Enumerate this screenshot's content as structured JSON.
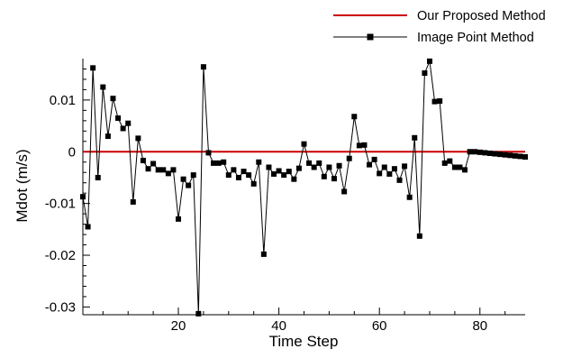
{
  "chart_data": {
    "type": "line",
    "xlabel": "Time Step",
    "ylabel": "Mdot (m/s)",
    "xlim": [
      1,
      89
    ],
    "ylim": [
      -0.0315,
      0.018
    ],
    "x_ticks": [
      20,
      40,
      60,
      80
    ],
    "x_tick_labels": [
      "20",
      "40",
      "60",
      "80"
    ],
    "y_ticks": [
      0.01,
      0,
      -0.01,
      -0.02,
      -0.03
    ],
    "y_tick_labels": [
      "0.01",
      "0",
      "-0.01",
      "-0.02",
      "-0.03"
    ],
    "grid": false,
    "legend_position": "top-right",
    "series": [
      {
        "name": "Our Proposed Method",
        "color": "#cc0000",
        "marker": "none",
        "x": [
          1,
          89
        ],
        "y": [
          0,
          0
        ]
      },
      {
        "name": "Image Point Method",
        "color": "#000000",
        "marker": "square",
        "x": [
          1,
          2,
          3,
          4,
          5,
          6,
          7,
          8,
          9,
          10,
          11,
          12,
          13,
          14,
          15,
          16,
          17,
          18,
          19,
          20,
          21,
          22,
          23,
          24,
          25,
          26,
          27,
          28,
          29,
          30,
          31,
          32,
          33,
          34,
          35,
          36,
          37,
          38,
          39,
          40,
          41,
          42,
          43,
          44,
          45,
          46,
          47,
          48,
          49,
          50,
          51,
          52,
          53,
          54,
          55,
          56,
          57,
          58,
          59,
          60,
          61,
          62,
          63,
          64,
          65,
          66,
          67,
          68,
          69,
          70,
          71,
          72,
          73,
          74,
          75,
          76,
          77,
          78,
          79,
          80,
          81,
          82,
          83,
          84,
          85,
          86,
          87,
          88,
          89
        ],
        "y": [
          -0.0087,
          -0.0145,
          0.0162,
          -0.005,
          0.0125,
          0.003,
          0.0103,
          0.0065,
          0.0045,
          0.0055,
          -0.0097,
          0.0026,
          -0.0017,
          -0.0033,
          -0.0023,
          -0.0035,
          -0.0035,
          -0.0042,
          -0.0035,
          -0.013,
          -0.0053,
          -0.0065,
          -0.0045,
          -0.0313,
          0.0164,
          -0.0002,
          -0.0022,
          -0.0022,
          -0.002,
          -0.0045,
          -0.0035,
          -0.005,
          -0.0038,
          -0.0045,
          -0.0062,
          -0.002,
          -0.0198,
          -0.003,
          -0.0043,
          -0.0037,
          -0.0045,
          -0.0038,
          -0.0053,
          -0.0032,
          0.0015,
          -0.0022,
          -0.003,
          -0.0022,
          -0.0048,
          -0.003,
          -0.0052,
          -0.0027,
          -0.0077,
          -0.0013,
          0.0068,
          0.0012,
          0.0013,
          -0.0025,
          -0.0015,
          -0.0042,
          -0.003,
          -0.0043,
          -0.0033,
          -0.0055,
          -0.0028,
          -0.0088,
          0.0027,
          -0.0163,
          0.0152,
          0.0175,
          0.0097,
          0.0098,
          -0.0022,
          -0.0018,
          -0.003,
          -0.003,
          -0.0035,
          0.0,
          0.0,
          -0.0001,
          -0.0002,
          -0.0003,
          -0.0004,
          -0.0005,
          -0.0006,
          -0.0007,
          -0.0008,
          -0.0009,
          -0.001
        ]
      }
    ]
  }
}
